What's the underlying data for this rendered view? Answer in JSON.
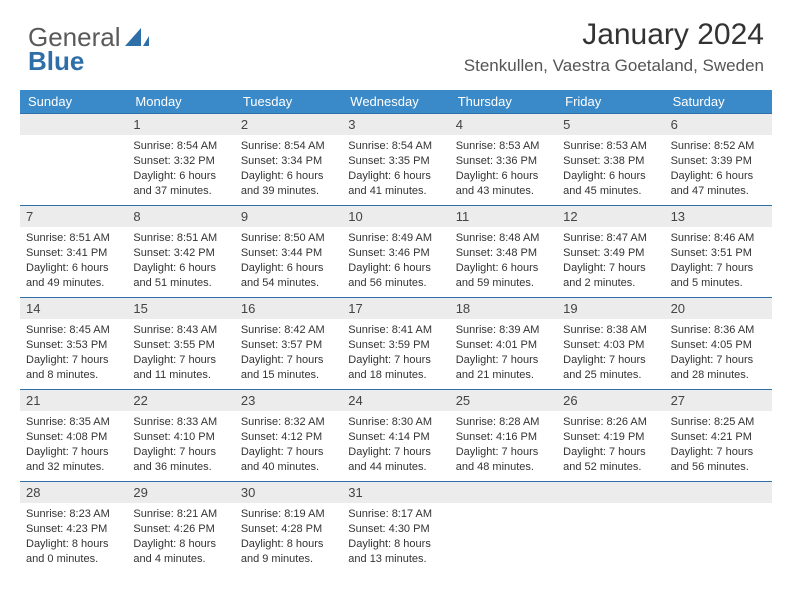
{
  "brand": {
    "word1": "General",
    "word2": "Blue"
  },
  "title": {
    "month": "January 2024",
    "location": "Stenkullen, Vaestra Goetaland, Sweden"
  },
  "colors": {
    "header_bg": "#3a8ac9",
    "header_text": "#ffffff",
    "daynum_bg": "#ececec",
    "rule": "#2f6fa8",
    "text": "#333333",
    "brand_gray": "#5a5a5a",
    "brand_blue": "#2f6fa8"
  },
  "fonts": {
    "title_size": 30,
    "location_size": 17,
    "header_size": 13,
    "cell_size": 11,
    "daynum_size": 13
  },
  "weekdays": [
    "Sunday",
    "Monday",
    "Tuesday",
    "Wednesday",
    "Thursday",
    "Friday",
    "Saturday"
  ],
  "weeks": [
    [
      {
        "n": "",
        "l1": "",
        "l2": "",
        "l3": "",
        "l4": ""
      },
      {
        "n": "1",
        "l1": "Sunrise: 8:54 AM",
        "l2": "Sunset: 3:32 PM",
        "l3": "Daylight: 6 hours",
        "l4": "and 37 minutes."
      },
      {
        "n": "2",
        "l1": "Sunrise: 8:54 AM",
        "l2": "Sunset: 3:34 PM",
        "l3": "Daylight: 6 hours",
        "l4": "and 39 minutes."
      },
      {
        "n": "3",
        "l1": "Sunrise: 8:54 AM",
        "l2": "Sunset: 3:35 PM",
        "l3": "Daylight: 6 hours",
        "l4": "and 41 minutes."
      },
      {
        "n": "4",
        "l1": "Sunrise: 8:53 AM",
        "l2": "Sunset: 3:36 PM",
        "l3": "Daylight: 6 hours",
        "l4": "and 43 minutes."
      },
      {
        "n": "5",
        "l1": "Sunrise: 8:53 AM",
        "l2": "Sunset: 3:38 PM",
        "l3": "Daylight: 6 hours",
        "l4": "and 45 minutes."
      },
      {
        "n": "6",
        "l1": "Sunrise: 8:52 AM",
        "l2": "Sunset: 3:39 PM",
        "l3": "Daylight: 6 hours",
        "l4": "and 47 minutes."
      }
    ],
    [
      {
        "n": "7",
        "l1": "Sunrise: 8:51 AM",
        "l2": "Sunset: 3:41 PM",
        "l3": "Daylight: 6 hours",
        "l4": "and 49 minutes."
      },
      {
        "n": "8",
        "l1": "Sunrise: 8:51 AM",
        "l2": "Sunset: 3:42 PM",
        "l3": "Daylight: 6 hours",
        "l4": "and 51 minutes."
      },
      {
        "n": "9",
        "l1": "Sunrise: 8:50 AM",
        "l2": "Sunset: 3:44 PM",
        "l3": "Daylight: 6 hours",
        "l4": "and 54 minutes."
      },
      {
        "n": "10",
        "l1": "Sunrise: 8:49 AM",
        "l2": "Sunset: 3:46 PM",
        "l3": "Daylight: 6 hours",
        "l4": "and 56 minutes."
      },
      {
        "n": "11",
        "l1": "Sunrise: 8:48 AM",
        "l2": "Sunset: 3:48 PM",
        "l3": "Daylight: 6 hours",
        "l4": "and 59 minutes."
      },
      {
        "n": "12",
        "l1": "Sunrise: 8:47 AM",
        "l2": "Sunset: 3:49 PM",
        "l3": "Daylight: 7 hours",
        "l4": "and 2 minutes."
      },
      {
        "n": "13",
        "l1": "Sunrise: 8:46 AM",
        "l2": "Sunset: 3:51 PM",
        "l3": "Daylight: 7 hours",
        "l4": "and 5 minutes."
      }
    ],
    [
      {
        "n": "14",
        "l1": "Sunrise: 8:45 AM",
        "l2": "Sunset: 3:53 PM",
        "l3": "Daylight: 7 hours",
        "l4": "and 8 minutes."
      },
      {
        "n": "15",
        "l1": "Sunrise: 8:43 AM",
        "l2": "Sunset: 3:55 PM",
        "l3": "Daylight: 7 hours",
        "l4": "and 11 minutes."
      },
      {
        "n": "16",
        "l1": "Sunrise: 8:42 AM",
        "l2": "Sunset: 3:57 PM",
        "l3": "Daylight: 7 hours",
        "l4": "and 15 minutes."
      },
      {
        "n": "17",
        "l1": "Sunrise: 8:41 AM",
        "l2": "Sunset: 3:59 PM",
        "l3": "Daylight: 7 hours",
        "l4": "and 18 minutes."
      },
      {
        "n": "18",
        "l1": "Sunrise: 8:39 AM",
        "l2": "Sunset: 4:01 PM",
        "l3": "Daylight: 7 hours",
        "l4": "and 21 minutes."
      },
      {
        "n": "19",
        "l1": "Sunrise: 8:38 AM",
        "l2": "Sunset: 4:03 PM",
        "l3": "Daylight: 7 hours",
        "l4": "and 25 minutes."
      },
      {
        "n": "20",
        "l1": "Sunrise: 8:36 AM",
        "l2": "Sunset: 4:05 PM",
        "l3": "Daylight: 7 hours",
        "l4": "and 28 minutes."
      }
    ],
    [
      {
        "n": "21",
        "l1": "Sunrise: 8:35 AM",
        "l2": "Sunset: 4:08 PM",
        "l3": "Daylight: 7 hours",
        "l4": "and 32 minutes."
      },
      {
        "n": "22",
        "l1": "Sunrise: 8:33 AM",
        "l2": "Sunset: 4:10 PM",
        "l3": "Daylight: 7 hours",
        "l4": "and 36 minutes."
      },
      {
        "n": "23",
        "l1": "Sunrise: 8:32 AM",
        "l2": "Sunset: 4:12 PM",
        "l3": "Daylight: 7 hours",
        "l4": "and 40 minutes."
      },
      {
        "n": "24",
        "l1": "Sunrise: 8:30 AM",
        "l2": "Sunset: 4:14 PM",
        "l3": "Daylight: 7 hours",
        "l4": "and 44 minutes."
      },
      {
        "n": "25",
        "l1": "Sunrise: 8:28 AM",
        "l2": "Sunset: 4:16 PM",
        "l3": "Daylight: 7 hours",
        "l4": "and 48 minutes."
      },
      {
        "n": "26",
        "l1": "Sunrise: 8:26 AM",
        "l2": "Sunset: 4:19 PM",
        "l3": "Daylight: 7 hours",
        "l4": "and 52 minutes."
      },
      {
        "n": "27",
        "l1": "Sunrise: 8:25 AM",
        "l2": "Sunset: 4:21 PM",
        "l3": "Daylight: 7 hours",
        "l4": "and 56 minutes."
      }
    ],
    [
      {
        "n": "28",
        "l1": "Sunrise: 8:23 AM",
        "l2": "Sunset: 4:23 PM",
        "l3": "Daylight: 8 hours",
        "l4": "and 0 minutes."
      },
      {
        "n": "29",
        "l1": "Sunrise: 8:21 AM",
        "l2": "Sunset: 4:26 PM",
        "l3": "Daylight: 8 hours",
        "l4": "and 4 minutes."
      },
      {
        "n": "30",
        "l1": "Sunrise: 8:19 AM",
        "l2": "Sunset: 4:28 PM",
        "l3": "Daylight: 8 hours",
        "l4": "and 9 minutes."
      },
      {
        "n": "31",
        "l1": "Sunrise: 8:17 AM",
        "l2": "Sunset: 4:30 PM",
        "l3": "Daylight: 8 hours",
        "l4": "and 13 minutes."
      },
      {
        "n": "",
        "l1": "",
        "l2": "",
        "l3": "",
        "l4": ""
      },
      {
        "n": "",
        "l1": "",
        "l2": "",
        "l3": "",
        "l4": ""
      },
      {
        "n": "",
        "l1": "",
        "l2": "",
        "l3": "",
        "l4": ""
      }
    ]
  ]
}
